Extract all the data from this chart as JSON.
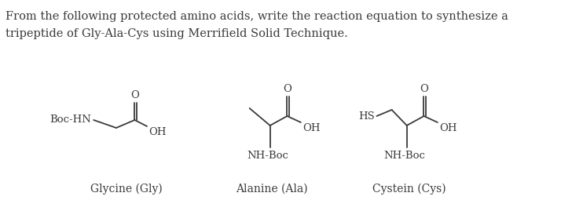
{
  "title_line1": "From the following protected amino acids, write the reaction equation to synthesize a",
  "title_line2": "tripeptide of Gly-Ala-Cys using Merrifield Solid Technique.",
  "bg_color": "#ffffff",
  "text_color": "#3a3a3a",
  "font_size_title": 10.5,
  "font_size_label": 10.0,
  "font_size_struct": 9.5,
  "gly_label": "Glycine (Gly)",
  "ala_label": "Alanine (Ala)",
  "cys_label": "Cystein (Cys)",
  "lw": 1.3
}
